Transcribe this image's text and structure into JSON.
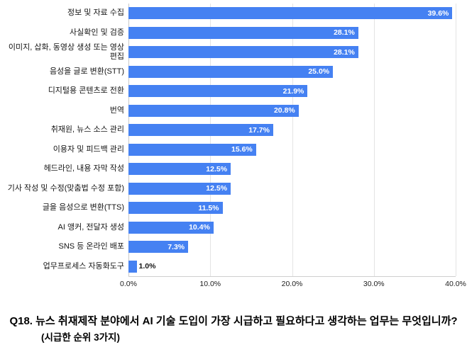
{
  "chart_data": {
    "type": "bar",
    "orientation": "horizontal",
    "title": "",
    "xlabel": "",
    "ylabel": "",
    "xlim": [
      0,
      40
    ],
    "x_ticks": [
      "0.0%",
      "10.0%",
      "20.0%",
      "30.0%",
      "40.0%"
    ],
    "grid": true,
    "bar_color": "#4581f2",
    "categories": [
      "정보 및 자료 수집",
      "사실확인 및 검증",
      "이미지, 삽화, 동영상 생성 또는 영상 편집",
      "음성을 글로 변환(STT)",
      "디지털용 콘텐츠로 전환",
      "번역",
      "취재원, 뉴스 소스 관리",
      "이용자 및 피드백 관리",
      "헤드라인, 내용 자막 작성",
      "기사 작성 및 수정(맞춤법 수정 포함)",
      "글을 음성으로 변환(TTS)",
      "AI 앵커, 전달자 생성",
      "SNS 등 온라인 배포",
      "업무프로세스 자동화도구"
    ],
    "values": [
      39.6,
      28.1,
      28.1,
      25.0,
      21.9,
      20.8,
      17.7,
      15.6,
      12.5,
      12.5,
      11.5,
      10.4,
      7.3,
      1.0
    ],
    "value_labels": [
      "39.6%",
      "28.1%",
      "28.1%",
      "25.0%",
      "21.9%",
      "20.8%",
      "17.7%",
      "15.6%",
      "12.5%",
      "12.5%",
      "11.5%",
      "10.4%",
      "7.3%",
      "1.0%"
    ]
  },
  "caption": {
    "line1": "Q18. 뉴스 취재제작 분야에서 AI 기술 도입이 가장 시급하고 필요하다고 생각하는 업무는 무엇입니까?",
    "line2": "(시급한 순위 3가지)"
  }
}
